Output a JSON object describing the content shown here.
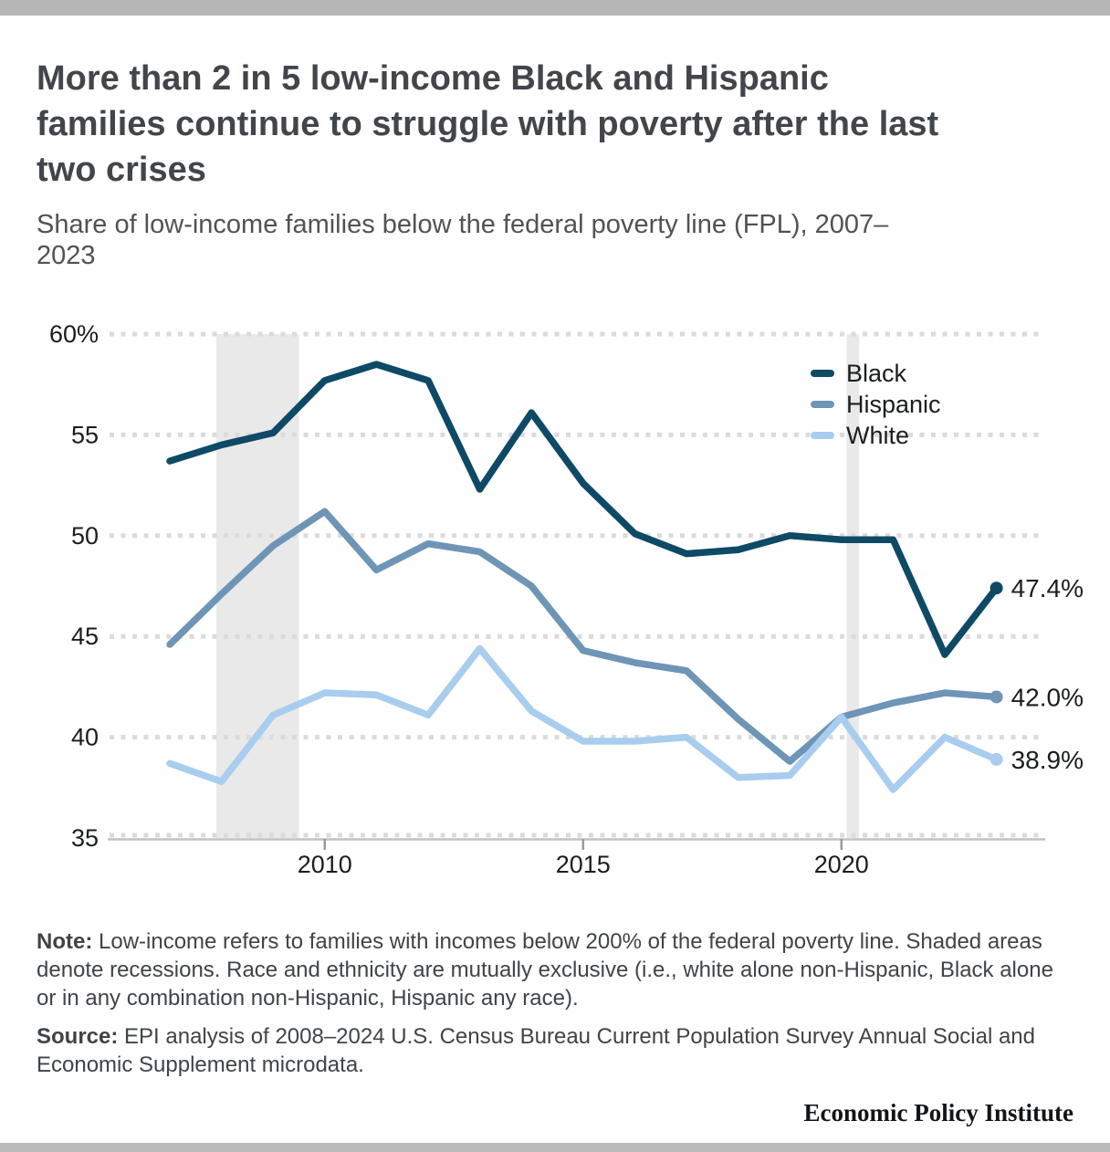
{
  "page": {
    "title": "More than 2 in 5 low-income Black and Hispanic families continue to struggle with poverty after the last two crises",
    "subtitle": "Share of low-income families below the federal poverty line (FPL), 2007–2023"
  },
  "note": {
    "label": "Note:",
    "text": " Low-income refers to families with incomes below 200% of the federal poverty line. Shaded areas denote recessions. Race and ethnicity are mutually exclusive (i.e., white alone non-Hispanic, Black alone or in any combination non-Hispanic, Hispanic any race)."
  },
  "source": {
    "label": "Source:",
    "text": " EPI analysis of 2008–2024 U.S. Census Bureau Current Population Survey Annual Social and Economic Supplement microdata."
  },
  "footer": {
    "brand": "Economic Policy Institute"
  },
  "colors": {
    "top_bar": "#B5B5B5",
    "bottom_bar": "#BBBBBB",
    "title_text": "#42464A",
    "subtitle_text": "#4E5357",
    "body_text": "#3F4448",
    "axis_text": "#1A1D1F",
    "gridline": "#DBDBDB",
    "axis_line": "#C2C2C2",
    "tick": "#9B9B9B",
    "recession_band": "#E9E9E9"
  },
  "chart_data": {
    "type": "line",
    "title": "More than 2 in 5 low-income Black and Hispanic families continue to struggle with poverty after the last two crises",
    "subtitle": "Share of low-income families below the federal poverty line (FPL), 2007–2023",
    "x": [
      2007,
      2008,
      2009,
      2010,
      2011,
      2012,
      2013,
      2014,
      2015,
      2016,
      2017,
      2018,
      2019,
      2020,
      2021,
      2022,
      2023
    ],
    "series": [
      {
        "name": "Black",
        "color": "#0E4A66",
        "end_label": "47.4%",
        "values": [
          53.7,
          54.5,
          55.1,
          57.7,
          58.5,
          57.7,
          52.3,
          56.1,
          52.6,
          50.1,
          49.1,
          49.3,
          50.0,
          49.8,
          49.8,
          44.1,
          47.4
        ]
      },
      {
        "name": "Hispanic",
        "color": "#6E95B6",
        "end_label": "42.0%",
        "values": [
          44.6,
          47.1,
          49.5,
          51.2,
          48.3,
          49.6,
          49.2,
          47.5,
          44.3,
          43.7,
          43.3,
          40.9,
          38.8,
          41.0,
          41.7,
          42.2,
          42.0
        ]
      },
      {
        "name": "White",
        "color": "#A8CDEE",
        "end_label": "38.9%",
        "values": [
          38.7,
          37.8,
          41.1,
          42.2,
          42.1,
          41.1,
          44.4,
          41.3,
          39.8,
          39.8,
          40.0,
          38.0,
          38.1,
          41.0,
          37.4,
          40.0,
          38.9
        ]
      }
    ],
    "ylim": [
      35,
      60
    ],
    "yticks": [
      60,
      55,
      50,
      45,
      40,
      35
    ],
    "ytick_labels": [
      "60%",
      "55",
      "50",
      "45",
      "40",
      "35"
    ],
    "xticks": [
      2010,
      2015,
      2020
    ],
    "xtick_labels": [
      "2010",
      "2015",
      "2020"
    ],
    "recessions": [
      {
        "start": 2007.9,
        "end": 2009.5
      },
      {
        "start": 2020.1,
        "end": 2020.34
      }
    ],
    "grid": "dotted-horizontal",
    "legend_position": "top-right"
  }
}
